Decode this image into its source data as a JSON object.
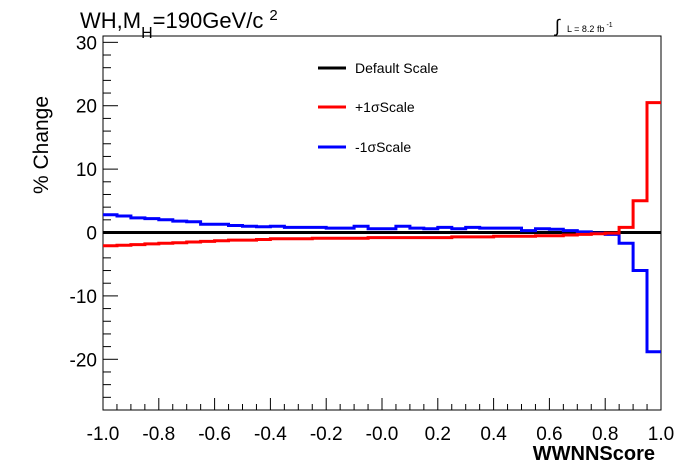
{
  "chart_data": {
    "type": "line",
    "title": "WH,M",
    "title_subscript": "H",
    "title_rest": "=190GeV/c",
    "title_superscript": "2",
    "lumi_integral": "∫",
    "lumi_text": "L = 8.2 fb",
    "lumi_superscript": "-1",
    "xlabel": "WWNNScore",
    "ylabel": "% Change",
    "xlim": [
      -1.0,
      1.0
    ],
    "ylim": [
      -28,
      31
    ],
    "x_ticks": [
      -1.0,
      -0.8,
      -0.6,
      -0.4,
      -0.2,
      0.0,
      0.2,
      0.4,
      0.6,
      0.8,
      1.0
    ],
    "x_tick_labels": [
      "-1.0",
      "-0.8",
      "-0.6",
      "-0.4",
      "-0.2",
      "-0.0",
      "0.2",
      "0.4",
      "0.6",
      "0.8",
      "1.0"
    ],
    "y_ticks": [
      -20,
      -10,
      0,
      10,
      20,
      30
    ],
    "y_tick_labels": [
      "-20",
      "-10",
      "0",
      "10",
      "20",
      "30"
    ],
    "bin_edges": [
      -1.0,
      -0.95,
      -0.9,
      -0.85,
      -0.8,
      -0.75,
      -0.7,
      -0.65,
      -0.6,
      -0.55,
      -0.5,
      -0.45,
      -0.4,
      -0.35,
      -0.3,
      -0.25,
      -0.2,
      -0.15,
      -0.1,
      -0.05,
      0.0,
      0.05,
      0.1,
      0.15,
      0.2,
      0.25,
      0.3,
      0.35,
      0.4,
      0.45,
      0.5,
      0.55,
      0.6,
      0.65,
      0.7,
      0.75,
      0.8,
      0.85,
      0.9,
      0.95,
      1.0
    ],
    "series": [
      {
        "name": "Default Scale",
        "color": "#000000",
        "values": [
          0,
          0,
          0,
          0,
          0,
          0,
          0,
          0,
          0,
          0,
          0,
          0,
          0,
          0,
          0,
          0,
          0,
          0,
          0,
          0,
          0,
          0,
          0,
          0,
          0,
          0,
          0,
          0,
          0,
          0,
          0,
          0,
          0,
          0,
          0,
          0,
          0,
          0,
          0,
          0
        ]
      },
      {
        "name": "+1σScale",
        "color": "#ff0000",
        "values": [
          -2.1,
          -2.0,
          -1.9,
          -1.8,
          -1.7,
          -1.6,
          -1.5,
          -1.4,
          -1.3,
          -1.2,
          -1.2,
          -1.1,
          -1.0,
          -1.0,
          -1.0,
          -0.9,
          -0.9,
          -0.9,
          -0.9,
          -0.8,
          -0.8,
          -0.8,
          -0.8,
          -0.8,
          -0.8,
          -0.7,
          -0.7,
          -0.7,
          -0.6,
          -0.6,
          -0.6,
          -0.5,
          -0.5,
          -0.4,
          -0.3,
          -0.2,
          -0.1,
          0.8,
          5.0,
          20.5
        ]
      },
      {
        "name": "-1σScale",
        "color": "#0000ff",
        "values": [
          2.8,
          2.6,
          2.3,
          2.2,
          2.0,
          1.8,
          1.7,
          1.3,
          1.3,
          1.1,
          1.0,
          0.9,
          1.0,
          0.8,
          0.8,
          0.8,
          0.7,
          0.7,
          1.0,
          0.6,
          0.6,
          1.0,
          0.7,
          0.6,
          0.8,
          0.6,
          0.8,
          0.7,
          0.7,
          0.7,
          0.3,
          0.6,
          0.5,
          0.3,
          0.1,
          -0.1,
          -0.3,
          -1.7,
          -6.0,
          -18.8
        ]
      }
    ],
    "legend_position": "top-center",
    "grid": false
  }
}
